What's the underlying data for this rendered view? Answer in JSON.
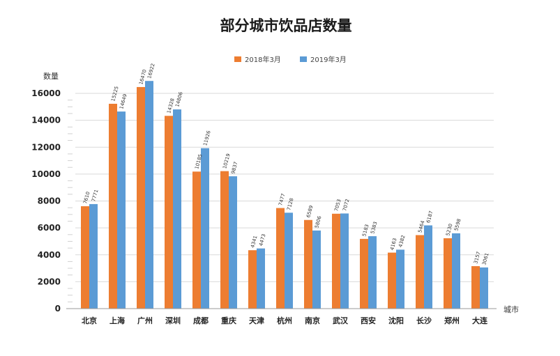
{
  "chart_data": {
    "type": "bar",
    "title": "部分城市饮品店数量",
    "ylabel": "数量",
    "xlabel": "城市",
    "ylim": [
      0,
      16000
    ],
    "yticks": [
      0,
      2000,
      4000,
      6000,
      8000,
      10000,
      12000,
      14000,
      16000
    ],
    "grid": true,
    "legend_position": "top-center",
    "categories": [
      "北京",
      "上海",
      "广州",
      "深圳",
      "成都",
      "重庆",
      "天津",
      "杭州",
      "南京",
      "武汉",
      "西安",
      "沈阳",
      "长沙",
      "郑州",
      "大连"
    ],
    "series": [
      {
        "name": "2018年3月",
        "color": "#ED7D31",
        "values": [
          7610,
          15225,
          16470,
          14328,
          10185,
          10219,
          4341,
          7477,
          6589,
          7053,
          5183,
          4163,
          5464,
          5230,
          3157
        ]
      },
      {
        "name": "2019年3月",
        "color": "#5B9BD5",
        "values": [
          7771,
          14649,
          16922,
          14806,
          11926,
          9837,
          4473,
          7128,
          5806,
          7072,
          5383,
          4382,
          6187,
          5598,
          3061
        ]
      }
    ]
  }
}
